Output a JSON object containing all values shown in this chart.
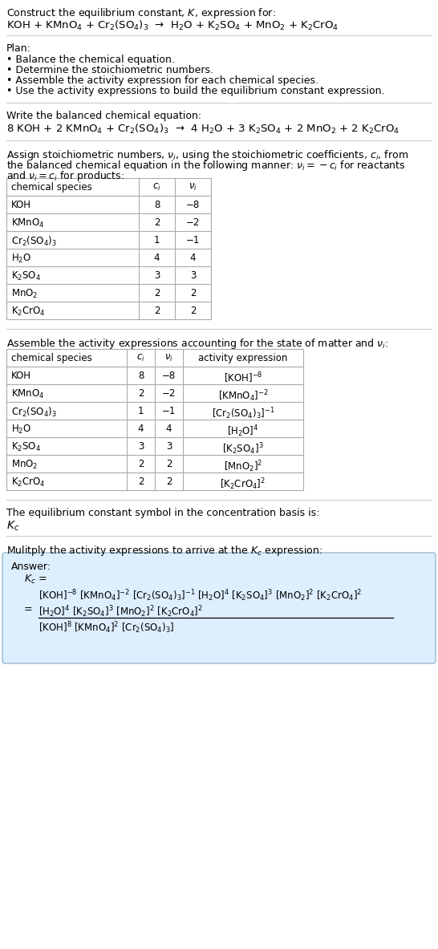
{
  "title_line1": "Construct the equilibrium constant, $K$, expression for:",
  "title_line2": "KOH + KMnO$_4$ + Cr$_2$(SO$_4$)$_3$  →  H$_2$O + K$_2$SO$_4$ + MnO$_2$ + K$_2$CrO$_4$",
  "plan_header": "Plan:",
  "plan_items": [
    "• Balance the chemical equation.",
    "• Determine the stoichiometric numbers.",
    "• Assemble the activity expression for each chemical species.",
    "• Use the activity expressions to build the equilibrium constant expression."
  ],
  "balanced_header": "Write the balanced chemical equation:",
  "balanced_eq": "8 KOH + 2 KMnO$_4$ + Cr$_2$(SO$_4$)$_3$  →  4 H$_2$O + 3 K$_2$SO$_4$ + 2 MnO$_2$ + 2 K$_2$CrO$_4$",
  "stoich_line1": "Assign stoichiometric numbers, $\\nu_i$, using the stoichiometric coefficients, $c_i$, from",
  "stoich_line2": "the balanced chemical equation in the following manner: $\\nu_i = -c_i$ for reactants",
  "stoich_line3": "and $\\nu_i = c_i$ for products:",
  "table1_cols": [
    "chemical species",
    "$c_i$",
    "$\\nu_i$"
  ],
  "table1_data": [
    [
      "KOH",
      "8",
      "−8"
    ],
    [
      "KMnO$_4$",
      "2",
      "−2"
    ],
    [
      "Cr$_2$(SO$_4$)$_3$",
      "1",
      "−1"
    ],
    [
      "H$_2$O",
      "4",
      "4"
    ],
    [
      "K$_2$SO$_4$",
      "3",
      "3"
    ],
    [
      "MnO$_2$",
      "2",
      "2"
    ],
    [
      "K$_2$CrO$_4$",
      "2",
      "2"
    ]
  ],
  "activity_header": "Assemble the activity expressions accounting for the state of matter and $\\nu_i$:",
  "table2_cols": [
    "chemical species",
    "$c_i$",
    "$\\nu_i$",
    "activity expression"
  ],
  "table2_data": [
    [
      "KOH",
      "8",
      "−8",
      "[KOH]$^{-8}$"
    ],
    [
      "KMnO$_4$",
      "2",
      "−2",
      "[KMnO$_4$]$^{-2}$"
    ],
    [
      "Cr$_2$(SO$_4$)$_3$",
      "1",
      "−1",
      "[Cr$_2$(SO$_4$)$_3$]$^{-1}$"
    ],
    [
      "H$_2$O",
      "4",
      "4",
      "[H$_2$O]$^4$"
    ],
    [
      "K$_2$SO$_4$",
      "3",
      "3",
      "[K$_2$SO$_4$]$^3$"
    ],
    [
      "MnO$_2$",
      "2",
      "2",
      "[MnO$_2$]$^2$"
    ],
    [
      "K$_2$CrO$_4$",
      "2",
      "2",
      "[K$_2$CrO$_4$]$^2$"
    ]
  ],
  "kc_text": "The equilibrium constant symbol in the concentration basis is:",
  "kc_symbol": "$K_c$",
  "multiply_text": "Mulitply the activity expressions to arrive at the $K_c$ expression:",
  "answer_label": "Answer:",
  "ans_kc_eq": "$K_c$ =",
  "ans_line2": "[KOH]$^{-8}$ [KMnO$_4$]$^{-2}$ [Cr$_2$(SO$_4$)$_3$]$^{-1}$ [H$_2$O]$^4$ [K$_2$SO$_4$]$^3$ [MnO$_2$]$^2$ [K$_2$CrO$_4$]$^2$",
  "ans_eq_sign": "=",
  "ans_numer": "[H$_2$O]$^4$ [K$_2$SO$_4$]$^3$ [MnO$_2$]$^2$ [K$_2$CrO$_4$]$^2$",
  "ans_denom": "[KOH]$^8$ [KMnO$_4$]$^2$ [Cr$_2$(SO$_4$)$_3$]",
  "bg_color": "#ffffff",
  "answer_bg": "#ddeeff",
  "answer_border": "#99bbcc",
  "table_border": "#aaaaaa",
  "line_color": "#cccccc"
}
